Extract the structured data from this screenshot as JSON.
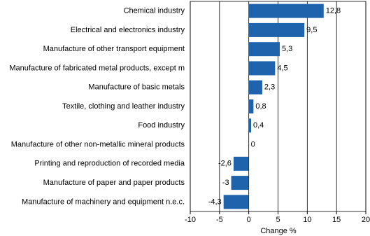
{
  "chart_data": {
    "type": "hbar",
    "x_label": "Change %",
    "categories": [
      "Chemical industry",
      "Electrical and electronics industry",
      "Manufacture of other transport equipment",
      "Manufacture of fabricated metal products, except m",
      "Manufacture of basic metals",
      "Textile, clothing and leather industry",
      "Food industry",
      "Manufacture of other non-metallic mineral products",
      "Printing and reproduction of recorded media",
      "Manufacture of paper and paper products",
      "Manufacture of machinery and equipment n.e.c."
    ],
    "values": [
      12.8,
      9.5,
      5.3,
      4.5,
      2.3,
      0.8,
      0.4,
      0,
      -2.6,
      -3,
      -4.3
    ],
    "value_labels": [
      "12,8",
      "9,5",
      "5,3",
      "4,5",
      "2,3",
      "0,8",
      "0,4",
      "0",
      "-2,6",
      "-3",
      "-4,3"
    ],
    "color": "#1f63ad",
    "xlim": [
      -10,
      20
    ],
    "xticks": [
      -10,
      -5,
      0,
      5,
      10,
      15,
      20
    ],
    "grid": true
  }
}
